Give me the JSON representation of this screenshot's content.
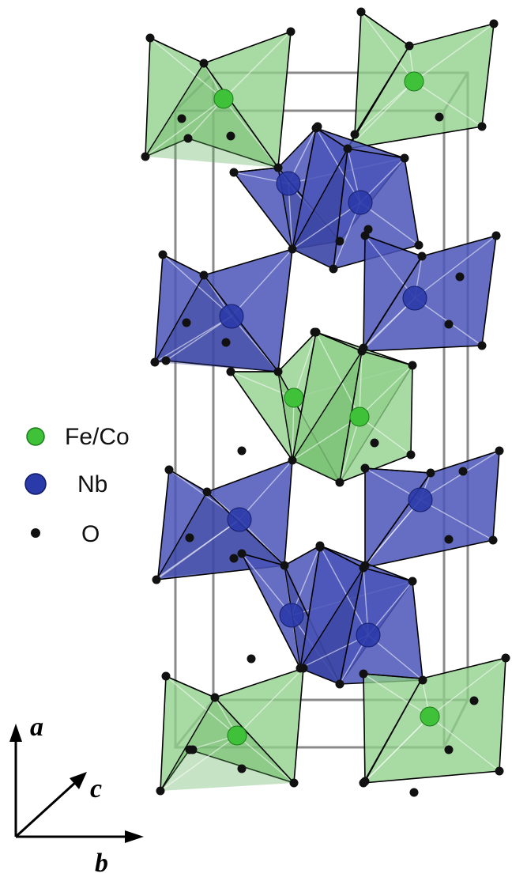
{
  "legend": {
    "items": [
      {
        "label": "Fe/Co",
        "color": "#3fc23a"
      },
      {
        "label": "Nb",
        "color": "#2a3aa8"
      },
      {
        "label": "O",
        "color": "#111111"
      }
    ]
  },
  "axes": {
    "a_label": "a",
    "b_label": "b",
    "c_label": "c"
  },
  "colors": {
    "feco_polyhedron": "#8fd08a",
    "nb_polyhedron": "#4a55b8",
    "unit_cell": "#8a8a8a",
    "oxygen": "#111111"
  }
}
